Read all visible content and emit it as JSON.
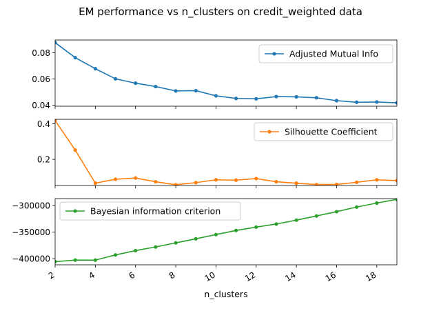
{
  "title": "EM performance vs n_clusters on credit_weighted data",
  "chart_data": [
    {
      "type": "line",
      "series": [
        {
          "name": "Adjusted Mutual Info",
          "color": "#1f77b4",
          "x": [
            2,
            3,
            4,
            5,
            6,
            7,
            8,
            9,
            10,
            11,
            12,
            13,
            14,
            15,
            16,
            17,
            18,
            19
          ],
          "values": [
            0.0876,
            0.0762,
            0.0678,
            0.0601,
            0.0568,
            0.0542,
            0.0509,
            0.0511,
            0.0472,
            0.0452,
            0.0449,
            0.0466,
            0.0464,
            0.0457,
            0.0435,
            0.0423,
            0.0425,
            0.0419
          ]
        }
      ],
      "xlim": [
        2,
        19
      ],
      "ylim": [
        0.0393,
        0.0896
      ],
      "yticks": [
        0.04,
        0.06,
        0.08
      ],
      "ytick_labels": [
        "0.04",
        "0.06",
        "0.08"
      ],
      "xticks": [
        2,
        4,
        6,
        8,
        10,
        12,
        14,
        16,
        18
      ],
      "legend": "upper right"
    },
    {
      "type": "line",
      "series": [
        {
          "name": "Silhouette Coefficient",
          "color": "#ff7f0e",
          "x": [
            2,
            3,
            4,
            5,
            6,
            7,
            8,
            9,
            10,
            11,
            12,
            13,
            14,
            15,
            16,
            17,
            18,
            19
          ],
          "values": [
            0.418,
            0.252,
            0.066,
            0.088,
            0.095,
            0.074,
            0.057,
            0.069,
            0.085,
            0.083,
            0.092,
            0.074,
            0.066,
            0.058,
            0.059,
            0.071,
            0.085,
            0.081
          ]
        }
      ],
      "xlim": [
        2,
        19
      ],
      "ylim": [
        0.053,
        0.425
      ],
      "yticks": [
        0.2,
        0.4
      ],
      "ytick_labels": [
        "0.2",
        "0.4"
      ],
      "xticks": [
        2,
        4,
        6,
        8,
        10,
        12,
        14,
        16,
        18
      ],
      "legend": "upper right"
    },
    {
      "type": "line",
      "series": [
        {
          "name": "Bayesian information criterion",
          "color": "#2ca02c",
          "x": [
            2,
            3,
            4,
            5,
            6,
            7,
            8,
            9,
            10,
            11,
            12,
            13,
            14,
            15,
            16,
            17,
            18,
            19
          ],
          "values": [
            -405600,
            -402700,
            -402800,
            -393000,
            -384900,
            -378000,
            -370300,
            -362700,
            -354800,
            -347000,
            -340700,
            -334900,
            -327600,
            -319800,
            -311700,
            -303000,
            -295600,
            -288500
          ]
        }
      ],
      "xlim": [
        2,
        19
      ],
      "ylim": [
        -411538,
        -287154
      ],
      "yticks": [
        -400000,
        -350000,
        -300000
      ],
      "ytick_labels": [
        "−400000",
        "−350000",
        "−300000"
      ],
      "xticks": [
        2,
        4,
        6,
        8,
        10,
        12,
        14,
        16,
        18
      ],
      "xtick_labels": [
        "2",
        "4",
        "6",
        "8",
        "10",
        "12",
        "14",
        "16",
        "18"
      ],
      "xlabel": "n_clusters",
      "legend": "upper left"
    }
  ]
}
